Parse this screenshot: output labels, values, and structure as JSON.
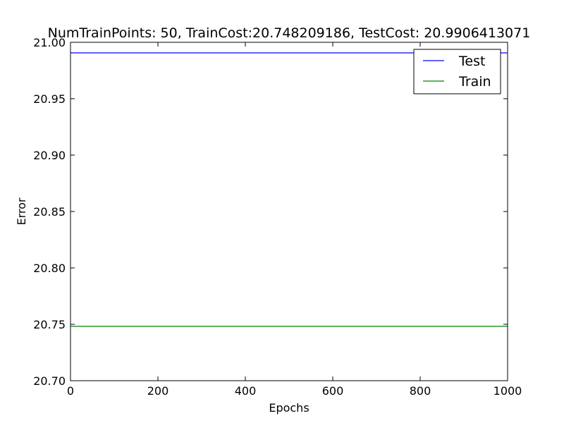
{
  "chart_data": {
    "type": "line",
    "title": "NumTrainPoints: 50, TrainCost:20.748209186, TestCost: 20.9906413071",
    "xlabel": "Epochs",
    "ylabel": "Error",
    "xlim": [
      0,
      1000
    ],
    "ylim": [
      20.7,
      21.0
    ],
    "x_ticks": [
      0,
      200,
      400,
      600,
      800,
      1000
    ],
    "x_tick_labels": [
      "0",
      "200",
      "400",
      "600",
      "800",
      "1000"
    ],
    "y_ticks": [
      20.7,
      20.75,
      20.8,
      20.85,
      20.9,
      20.95,
      21.0
    ],
    "y_tick_labels": [
      "20.70",
      "20.75",
      "20.80",
      "20.85",
      "20.90",
      "20.95",
      "21.00"
    ],
    "grid": false,
    "legend_position": "top-right",
    "series": [
      {
        "name": "Test",
        "color": "#0000ff",
        "x": [
          0,
          1000
        ],
        "y": [
          20.9906413071,
          20.9906413071
        ]
      },
      {
        "name": "Train",
        "color": "#008000",
        "x": [
          0,
          1000
        ],
        "y": [
          20.748209186,
          20.748209186
        ]
      }
    ]
  }
}
